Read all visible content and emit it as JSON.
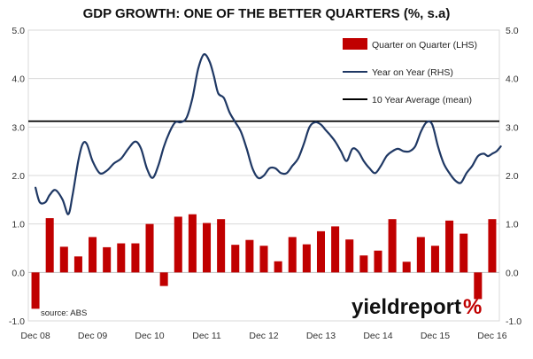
{
  "chart_data": {
    "type": "bar",
    "title": "GDP GROWTH: ONE OF THE BETTER QUARTERS (%, s.a)",
    "source": "source: ABS",
    "brand": {
      "word": "yieldreport",
      "symbol": "%",
      "word_color": "#111111",
      "symbol_color": "#c00000"
    },
    "ylim": [
      -1,
      5
    ],
    "y_ticks": [
      "5.0",
      "4.0",
      "3.0",
      "2.0",
      "1.0",
      "0.0",
      "-1.0"
    ],
    "y_tick_values": [
      5,
      4,
      3,
      2,
      1,
      0,
      -1
    ],
    "grid": true,
    "legend_position": "top-right",
    "x_tick_labels": [
      "Dec 08",
      "Dec 09",
      "Dec 10",
      "Dec 11",
      "Dec 12",
      "Dec 13",
      "Dec 14",
      "Dec 15",
      "Dec 16"
    ],
    "categories": [
      "Dec 08",
      "Mar 09",
      "Jun 09",
      "Sep 09",
      "Dec 09",
      "Mar 10",
      "Jun 10",
      "Sep 10",
      "Dec 10",
      "Mar 11",
      "Jun 11",
      "Sep 11",
      "Dec 11",
      "Mar 12",
      "Jun 12",
      "Sep 12",
      "Dec 12",
      "Mar 13",
      "Jun 13",
      "Sep 13",
      "Dec 13",
      "Mar 14",
      "Jun 14",
      "Sep 14",
      "Dec 14",
      "Mar 15",
      "Jun 15",
      "Sep 15",
      "Dec 15",
      "Mar 16",
      "Jun 16",
      "Sep 16",
      "Dec 16"
    ],
    "series": [
      {
        "name": "Quarter on Quarter (LHS)",
        "type": "bar",
        "color": "#c00000",
        "values": [
          -0.75,
          1.12,
          0.53,
          0.33,
          0.73,
          0.52,
          0.6,
          0.6,
          1.0,
          -0.28,
          1.15,
          1.2,
          1.02,
          1.1,
          0.57,
          0.67,
          0.55,
          0.23,
          0.73,
          0.58,
          0.85,
          0.95,
          0.68,
          0.35,
          0.45,
          1.1,
          0.22,
          0.73,
          0.55,
          1.07,
          0.8,
          -0.55,
          1.1
        ]
      },
      {
        "name": "Year on Year (RHS)",
        "type": "line",
        "color": "#1f3864",
        "x": [
          0,
          0.3,
          0.7,
          1.0,
          1.4,
          1.9,
          2.3,
          2.6,
          3.0,
          3.3,
          3.6,
          4.0,
          4.5,
          5.0,
          5.5,
          6.0,
          6.5,
          7.0,
          7.4,
          7.8,
          8.2,
          8.6,
          9.0,
          9.4,
          9.8,
          10.2,
          10.6,
          11.0,
          11.4,
          11.8,
          12.2,
          12.5,
          12.8,
          13.2,
          13.6,
          14.0,
          14.4,
          14.8,
          15.2,
          15.6,
          16.0,
          16.4,
          16.8,
          17.2,
          17.6,
          18.0,
          18.4,
          18.8,
          19.2,
          19.6,
          20.0,
          20.3,
          20.6,
          21.0,
          21.4,
          21.8,
          22.2,
          22.6,
          23.0,
          23.4,
          23.8,
          24.2,
          24.6,
          25.0,
          25.4,
          25.8,
          26.2,
          26.6,
          27.0,
          27.4,
          27.8,
          28.2,
          28.6,
          29.0,
          29.4,
          29.8,
          30.2,
          30.6,
          31.0,
          31.4,
          31.7,
          32.0,
          32.3,
          32.6
        ],
        "values": [
          1.75,
          1.45,
          1.45,
          1.6,
          1.7,
          1.5,
          1.2,
          1.6,
          2.3,
          2.65,
          2.65,
          2.3,
          2.05,
          2.1,
          2.25,
          2.35,
          2.55,
          2.7,
          2.55,
          2.15,
          1.95,
          2.2,
          2.6,
          2.9,
          3.1,
          3.1,
          3.2,
          3.6,
          4.2,
          4.5,
          4.35,
          4.05,
          3.7,
          3.6,
          3.3,
          3.1,
          2.9,
          2.55,
          2.15,
          1.95,
          2.0,
          2.15,
          2.15,
          2.05,
          2.05,
          2.2,
          2.35,
          2.65,
          3.0,
          3.1,
          3.05,
          2.95,
          2.85,
          2.7,
          2.5,
          2.3,
          2.55,
          2.5,
          2.3,
          2.15,
          2.05,
          2.2,
          2.4,
          2.5,
          2.55,
          2.5,
          2.5,
          2.6,
          2.9,
          3.1,
          3.05,
          2.6,
          2.25,
          2.05,
          1.9,
          1.85,
          2.05,
          2.2,
          2.4,
          2.45,
          2.4,
          2.45,
          2.5,
          2.6
        ]
      },
      {
        "name": "10 Year Average (mean)",
        "type": "hline",
        "color": "#000000",
        "value": 3.12
      }
    ]
  }
}
